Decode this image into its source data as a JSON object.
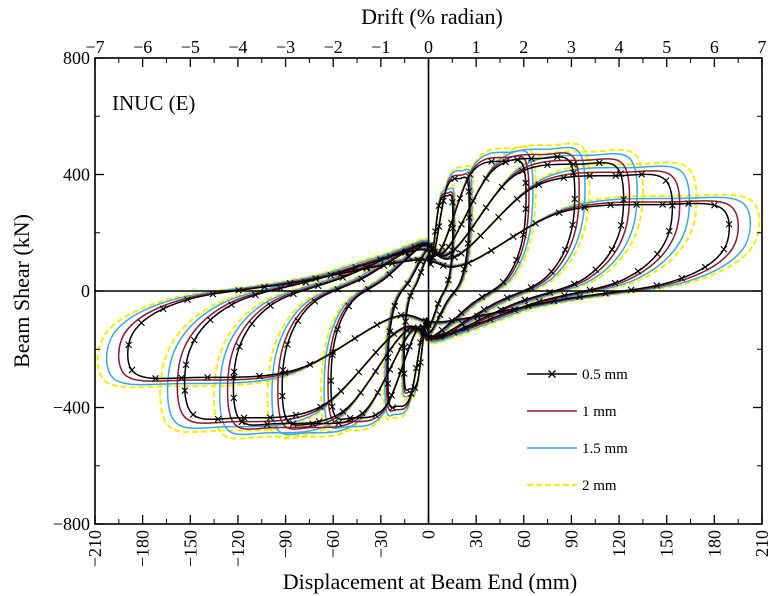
{
  "chart_data": {
    "type": "line",
    "title": "",
    "panel_label": "INUC (E)",
    "xlabel": "Displacement at Beam End (mm)",
    "x2label": "Drift (% radian)",
    "ylabel": "Beam Shear (kN)",
    "xlim": [
      -210,
      210
    ],
    "ylim": [
      -800,
      800
    ],
    "x2lim": [
      -7,
      7
    ],
    "xticks": [
      "−210",
      "−180",
      "−150",
      "−120",
      "−90",
      "−60",
      "−30",
      "0",
      "30",
      "60",
      "90",
      "120",
      "150",
      "180",
      "210"
    ],
    "x2ticks": [
      "−7",
      "−6",
      "−5",
      "−4",
      "−3",
      "−2",
      "−1",
      "0",
      "1",
      "2",
      "3",
      "4",
      "5",
      "6",
      "7"
    ],
    "yticks": [
      "800",
      "400",
      "0",
      "−400",
      "−800"
    ],
    "grid": false,
    "legend_position": "bottom-right",
    "loops": [
      {
        "dx": 15,
        "fpos": 330,
        "fneg": -340
      },
      {
        "dx": 25,
        "fpos": 390,
        "fneg": -400
      },
      {
        "dx": 60,
        "fpos": 450,
        "fneg": -440
      },
      {
        "dx": 90,
        "fpos": 460,
        "fneg": -460
      },
      {
        "dx": 120,
        "fpos": 440,
        "fneg": -460
      },
      {
        "dx": 150,
        "fpos": 400,
        "fneg": -440
      },
      {
        "dx": 185,
        "fpos": 300,
        "fneg": -300
      }
    ],
    "series": [
      {
        "name": "0.5 mm",
        "color": "#000000",
        "style": "solid",
        "marker": "x",
        "scale": 1.0
      },
      {
        "name": "1 mm",
        "color": "#8b1a2b",
        "style": "solid",
        "marker": "",
        "scale": 1.03
      },
      {
        "name": "1.5 mm",
        "color": "#3aa8e0",
        "style": "solid",
        "marker": "",
        "scale": 1.07
      },
      {
        "name": "2 mm",
        "color": "#f2ee1c",
        "style": "dashed",
        "marker": "",
        "scale": 1.1
      }
    ]
  }
}
